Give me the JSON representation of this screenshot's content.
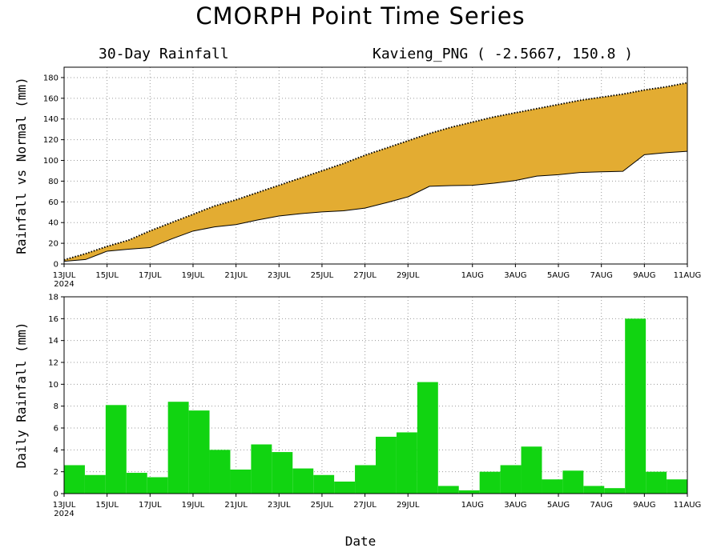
{
  "title": "CMORPH Point Time Series",
  "subtitle_left": "30-Day Rainfall",
  "subtitle_right": "Kavieng_PNG ( -2.5667, 150.8 )",
  "xlabel": "Date",
  "year_label": "2024",
  "colors": {
    "accumulated_fill": "#E3AC32",
    "daily_bar": "#11D411",
    "line": "#000000"
  },
  "chart_data": [
    {
      "type": "area",
      "ylabel": "Rainfall vs Normal (mm)",
      "ylim": [
        0,
        190
      ],
      "yticks": [
        0,
        20,
        40,
        60,
        80,
        100,
        120,
        140,
        160,
        180
      ],
      "grid": true,
      "x_ticks": [
        "13JUL",
        "15JUL",
        "17JUL",
        "19JUL",
        "21JUL",
        "23JUL",
        "25JUL",
        "27JUL",
        "29JUL",
        "1AUG",
        "3AUG",
        "5AUG",
        "7AUG",
        "9AUG",
        "11AUG"
      ],
      "x_tick_days": [
        0,
        2,
        4,
        6,
        8,
        10,
        12,
        14,
        16,
        19,
        21,
        23,
        25,
        27,
        29
      ],
      "series": [
        {
          "name": "",
          "style": "dotted",
          "x": [
            0,
            1,
            2,
            3,
            4,
            5,
            6,
            7,
            8,
            9,
            10,
            11,
            12,
            13,
            14,
            15,
            16,
            17,
            18,
            19,
            20,
            21,
            22,
            23,
            24,
            25,
            26,
            27,
            28,
            29
          ],
          "values": [
            4,
            10,
            17,
            23,
            32,
            40,
            48,
            56,
            62,
            69,
            76,
            83,
            90,
            97,
            105,
            112,
            119,
            126,
            132,
            137,
            142,
            146,
            150,
            154,
            158,
            161,
            164,
            168,
            171,
            175
          ]
        },
        {
          "name": "",
          "style": "solid",
          "x": [
            0,
            1,
            2,
            3,
            4,
            5,
            6,
            7,
            8,
            9,
            10,
            11,
            12,
            13,
            14,
            15,
            16,
            17,
            18,
            19,
            20,
            21,
            22,
            23,
            24,
            25,
            26,
            27,
            28,
            29
          ],
          "values": [
            2.6,
            4.3,
            12.4,
            14.3,
            15.8,
            24.2,
            31.8,
            35.8,
            38,
            42.5,
            46.3,
            48.6,
            50.3,
            51.4,
            54,
            59.2,
            64.8,
            75,
            75.7,
            76,
            78,
            80.6,
            84.9,
            86.2,
            88.3,
            89,
            89.5,
            105.5,
            107.5,
            108.8
          ]
        }
      ]
    },
    {
      "type": "bar",
      "ylabel": "Daily Rainfall (mm)",
      "ylim": [
        0,
        18
      ],
      "yticks": [
        0,
        2,
        4,
        6,
        8,
        10,
        12,
        14,
        16,
        18
      ],
      "grid": true,
      "x_ticks": [
        "13JUL",
        "15JUL",
        "17JUL",
        "19JUL",
        "21JUL",
        "23JUL",
        "25JUL",
        "27JUL",
        "29JUL",
        "1AUG",
        "3AUG",
        "5AUG",
        "7AUG",
        "9AUG",
        "11AUG"
      ],
      "x_tick_days": [
        0,
        2,
        4,
        6,
        8,
        10,
        12,
        14,
        16,
        19,
        21,
        23,
        25,
        27,
        29
      ],
      "x": [
        0,
        1,
        2,
        3,
        4,
        5,
        6,
        7,
        8,
        9,
        10,
        11,
        12,
        13,
        14,
        15,
        16,
        17,
        18,
        19,
        20,
        21,
        22,
        23,
        24,
        25,
        26,
        27,
        28,
        29
      ],
      "values": [
        2.6,
        1.7,
        8.1,
        1.9,
        1.5,
        8.4,
        7.6,
        4.0,
        2.2,
        4.5,
        3.8,
        2.3,
        1.7,
        1.1,
        2.6,
        5.2,
        5.6,
        10.2,
        0.7,
        0.3,
        2.0,
        2.6,
        4.3,
        1.3,
        2.1,
        0.7,
        0.5,
        16.0,
        2.0,
        1.3
      ]
    }
  ]
}
